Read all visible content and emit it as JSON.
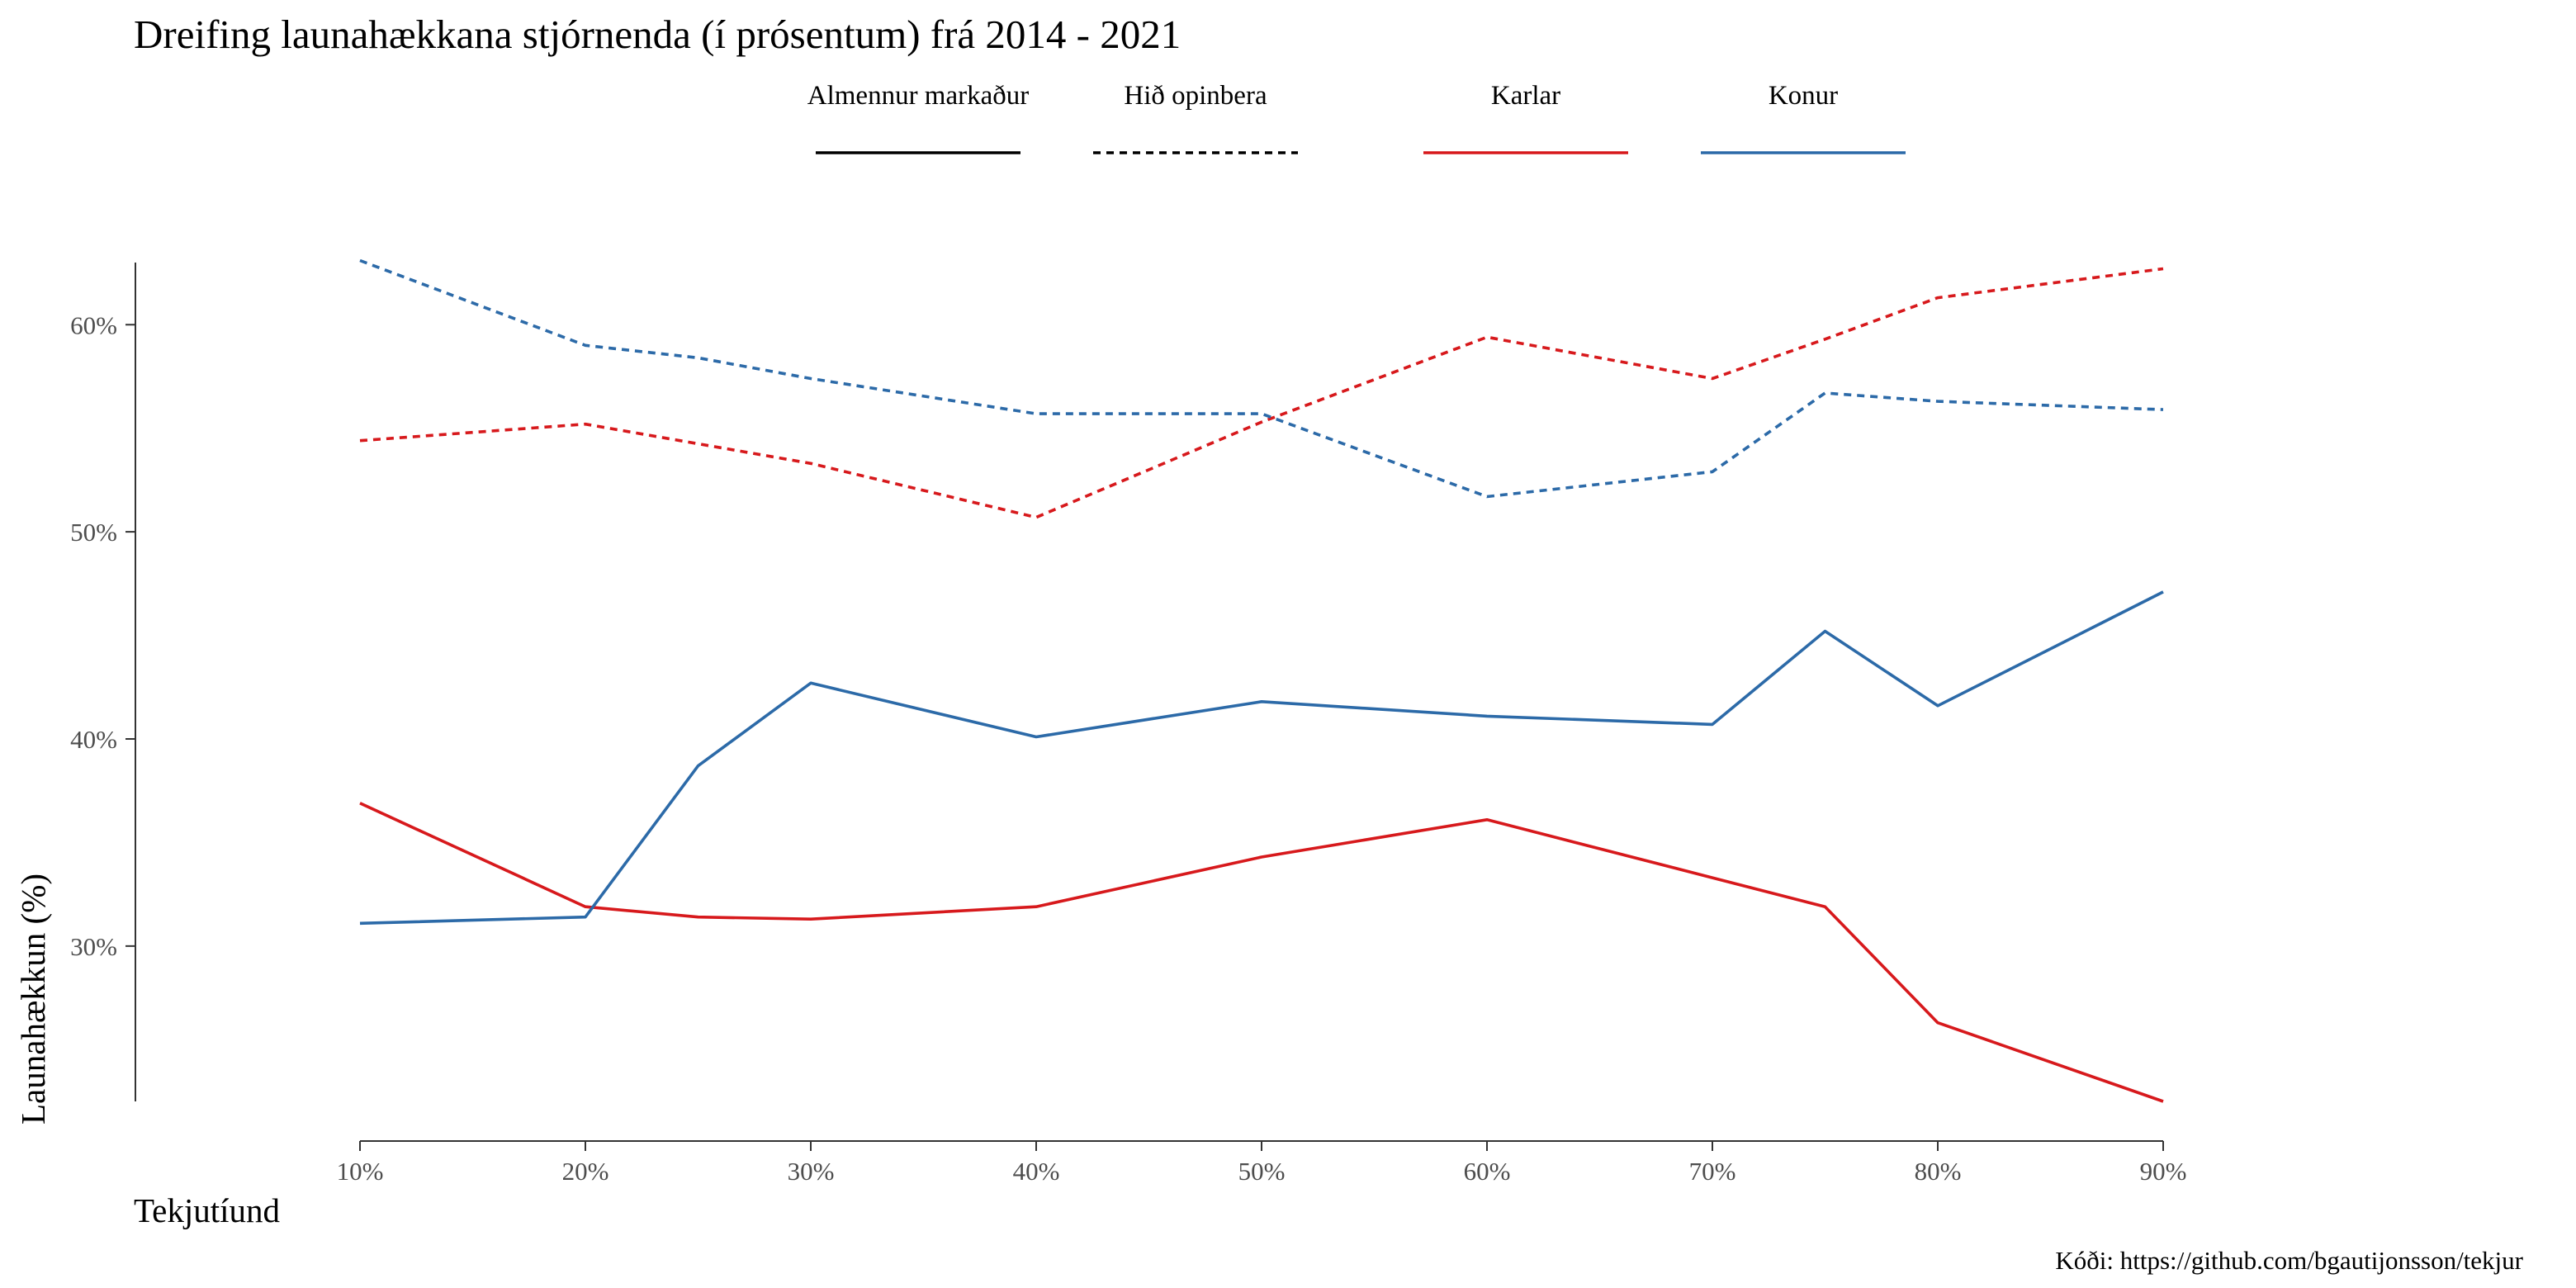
{
  "chart_data": {
    "type": "line",
    "title": "Dreifing launahækkana stjórnenda (í prósentum) frá 2014 - 2021",
    "xlabel": "Tekjutíund",
    "ylabel": "Launahækkun (%)",
    "caption": "Kóði: https://github.com/bgautijonsson/tekjur",
    "x_ticks": [
      "10%",
      "20%",
      "30%",
      "40%",
      "50%",
      "60%",
      "70%",
      "80%",
      "90%"
    ],
    "y_ticks": [
      "30%",
      "40%",
      "50%",
      "60%"
    ],
    "xlim": [
      10,
      90
    ],
    "ylim": [
      22.5,
      63
    ],
    "grid": false,
    "legend": {
      "placement": "top",
      "linetype": [
        {
          "label": "Almennur markaður",
          "style": "solid"
        },
        {
          "label": "Hið opinbera",
          "style": "dashed"
        }
      ],
      "color": [
        {
          "label": "Karlar",
          "color": "#d7191c"
        },
        {
          "label": "Konur",
          "color": "#2c6aa8"
        }
      ]
    },
    "series": [
      {
        "sector": "Almennur markaður",
        "gender": "Karlar",
        "linetype": "solid",
        "color": "#d7191c",
        "x": [
          10,
          20,
          25,
          30,
          40,
          50,
          60,
          70,
          75,
          80,
          90
        ],
        "y": [
          36.9,
          31.9,
          31.4,
          31.3,
          31.9,
          34.3,
          36.1,
          33.3,
          31.9,
          26.3,
          22.5
        ]
      },
      {
        "sector": "Almennur markaður",
        "gender": "Konur",
        "linetype": "solid",
        "color": "#2c6aa8",
        "x": [
          10,
          20,
          25,
          30,
          40,
          50,
          60,
          70,
          75,
          80,
          90
        ],
        "y": [
          31.1,
          31.4,
          38.7,
          42.7,
          40.1,
          41.8,
          41.1,
          40.7,
          45.2,
          41.6,
          47.1
        ]
      },
      {
        "sector": "Hið opinbera",
        "gender": "Karlar",
        "linetype": "dashed",
        "color": "#d7191c",
        "x": [
          10,
          20,
          30,
          40,
          50,
          60,
          70,
          75,
          80,
          90
        ],
        "y": [
          54.4,
          55.2,
          53.3,
          50.7,
          55.3,
          59.4,
          57.4,
          59.3,
          61.3,
          62.7
        ]
      },
      {
        "sector": "Hið opinbera",
        "gender": "Konur",
        "linetype": "dashed",
        "color": "#2c6aa8",
        "x": [
          10,
          20,
          25,
          30,
          40,
          50,
          60,
          70,
          75,
          80,
          90
        ],
        "y": [
          63.1,
          59.0,
          58.4,
          57.4,
          55.7,
          55.7,
          51.7,
          52.9,
          56.7,
          56.3,
          55.9
        ]
      }
    ]
  }
}
